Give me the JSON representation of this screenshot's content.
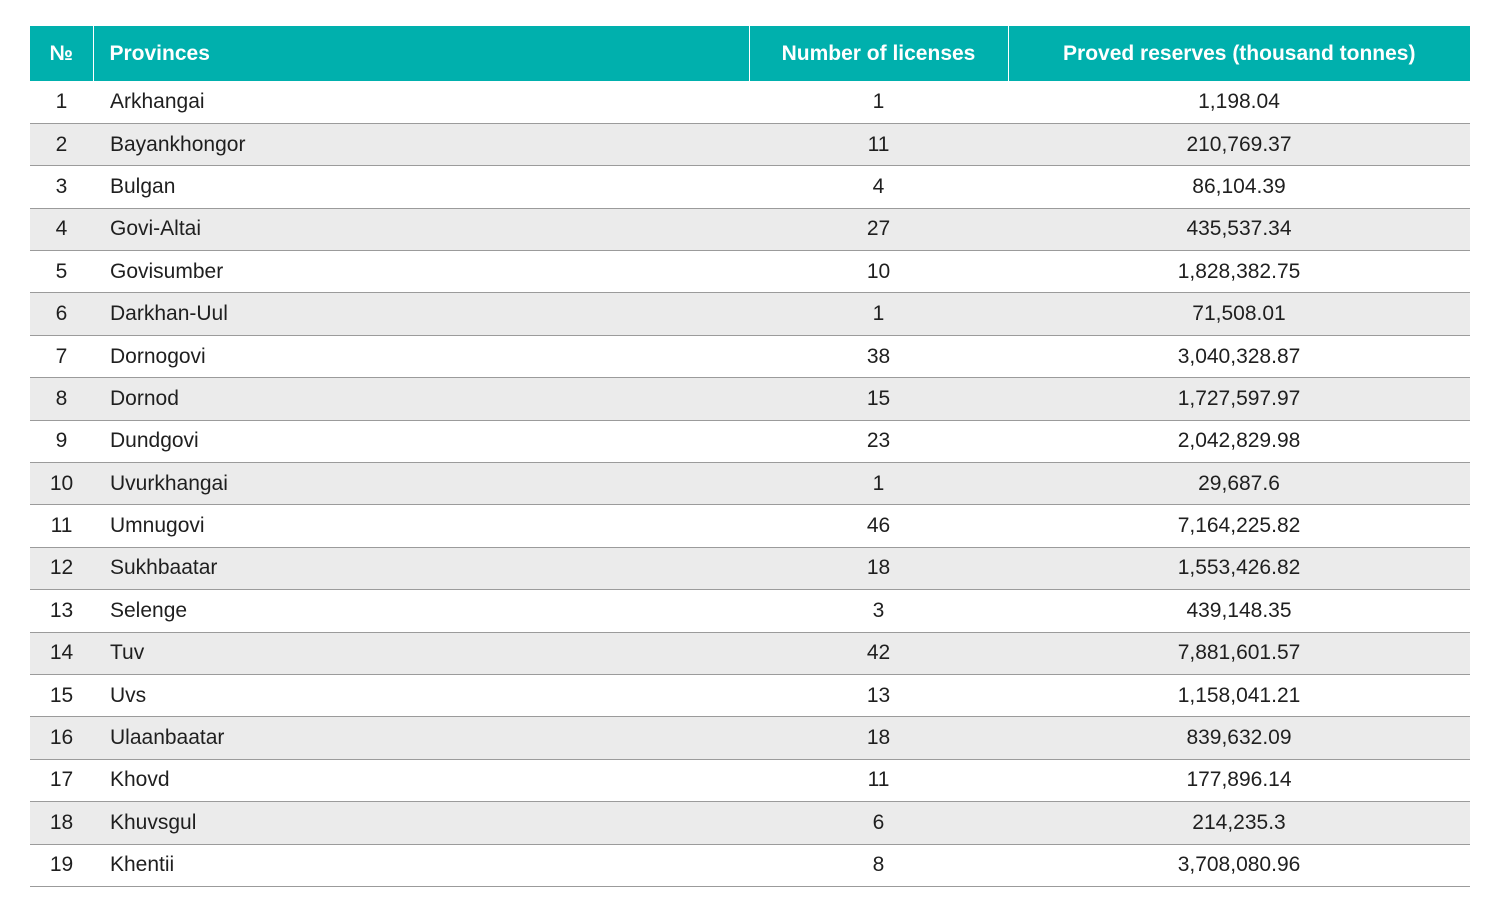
{
  "table": {
    "headers": {
      "number": "№",
      "province": "Provinces",
      "licenses": "Number of licenses",
      "reserves": "Proved reserves (thousand tonnes)"
    },
    "rows": [
      {
        "number": "1",
        "province": "Arkhangai",
        "licenses": "1",
        "reserves": "1,198.04"
      },
      {
        "number": "2",
        "province": "Bayankhongor",
        "licenses": "11",
        "reserves": "210,769.37"
      },
      {
        "number": "3",
        "province": "Bulgan",
        "licenses": "4",
        "reserves": "86,104.39"
      },
      {
        "number": "4",
        "province": "Govi-Altai",
        "licenses": "27",
        "reserves": "435,537.34"
      },
      {
        "number": "5",
        "province": "Govisumber",
        "licenses": "10",
        "reserves": "1,828,382.75"
      },
      {
        "number": "6",
        "province": "Darkhan-Uul",
        "licenses": "1",
        "reserves": "71,508.01"
      },
      {
        "number": "7",
        "province": "Dornogovi",
        "licenses": "38",
        "reserves": "3,040,328.87"
      },
      {
        "number": "8",
        "province": "Dornod",
        "licenses": "15",
        "reserves": "1,727,597.97"
      },
      {
        "number": "9",
        "province": "Dundgovi",
        "licenses": "23",
        "reserves": "2,042,829.98"
      },
      {
        "number": "10",
        "province": "Uvurkhangai",
        "licenses": "1",
        "reserves": "29,687.6"
      },
      {
        "number": "11",
        "province": "Umnugovi",
        "licenses": "46",
        "reserves": "7,164,225.82"
      },
      {
        "number": "12",
        "province": "Sukhbaatar",
        "licenses": "18",
        "reserves": "1,553,426.82"
      },
      {
        "number": "13",
        "province": "Selenge",
        "licenses": "3",
        "reserves": "439,148.35"
      },
      {
        "number": "14",
        "province": "Tuv",
        "licenses": "42",
        "reserves": "7,881,601.57"
      },
      {
        "number": "15",
        "province": "Uvs",
        "licenses": "13",
        "reserves": "1,158,041.21"
      },
      {
        "number": "16",
        "province": "Ulaanbaatar",
        "licenses": "18",
        "reserves": "839,632.09"
      },
      {
        "number": "17",
        "province": "Khovd",
        "licenses": "11",
        "reserves": "177,896.14"
      },
      {
        "number": "18",
        "province": "Khuvsgul",
        "licenses": "6",
        "reserves": "214,235.3"
      },
      {
        "number": "19",
        "province": "Khentii",
        "licenses": "8",
        "reserves": "3,708,080.96"
      }
    ]
  },
  "colors": {
    "header_bg": "#00b0ad",
    "header_text": "#ffffff",
    "stripe_bg": "#ebebeb",
    "row_border": "#9b9b9b"
  }
}
